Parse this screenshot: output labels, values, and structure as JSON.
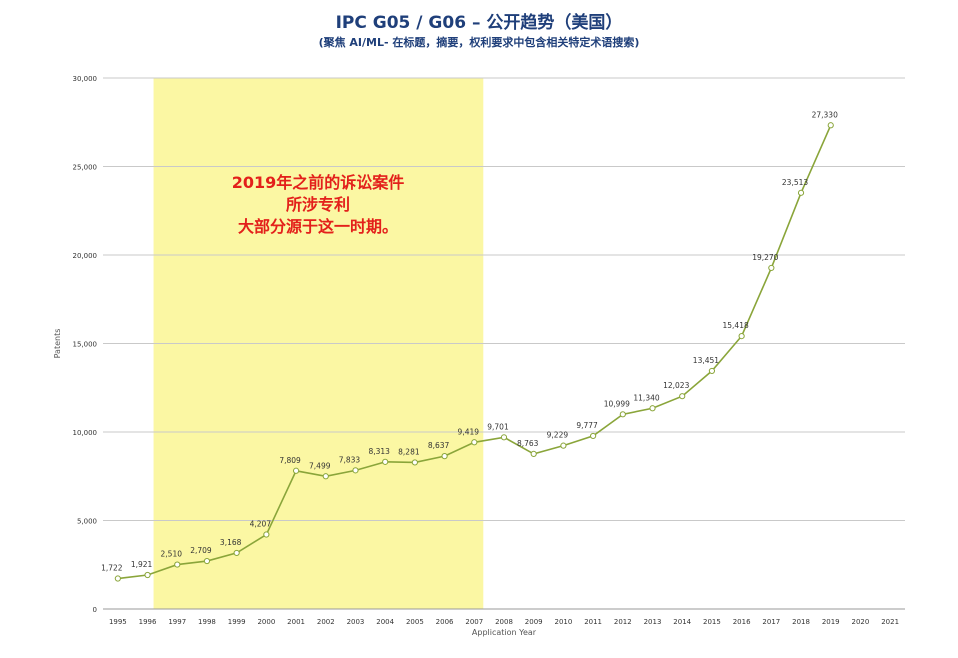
{
  "chart_data": {
    "type": "line",
    "title": "IPC G05 / G06 – 公开趋势（美国）",
    "subtitle": "(聚焦 AI/ML- 在标题，摘要，权利要求中包含相关特定术语搜索)",
    "xlabel": "Application Year",
    "ylabel": "Patents",
    "ylim": [
      0,
      30000
    ],
    "y_ticks": [
      "0",
      "5,000",
      "10,000",
      "15,000",
      "20,000",
      "25,000",
      "30,000"
    ],
    "y_tick_values": [
      0,
      5000,
      10000,
      15000,
      20000,
      25000,
      30000
    ],
    "categories": [
      "1995",
      "1996",
      "1997",
      "1998",
      "1999",
      "2000",
      "2001",
      "2002",
      "2003",
      "2004",
      "2005",
      "2006",
      "2007",
      "2008",
      "2009",
      "2010",
      "2011",
      "2012",
      "2013",
      "2014",
      "2015",
      "2016",
      "2017",
      "2018",
      "2019",
      "2020",
      "2021"
    ],
    "series": [
      {
        "values": [
          1722,
          1921,
          2510,
          2709,
          3168,
          4207,
          7809,
          7499,
          7833,
          8313,
          8281,
          8637,
          9419,
          9701,
          8763,
          9229,
          9777,
          10999,
          11340,
          12023,
          13451,
          15418,
          19270,
          23513,
          27330,
          null,
          null
        ],
        "labels": [
          "1,722",
          "1,921",
          "2,510",
          "2,709",
          "3,168",
          "4,207",
          "7,809",
          "7,499",
          "7,833",
          "8,313",
          "8,281",
          "8,637",
          "9,419",
          "9,701",
          "8,763",
          "9,229",
          "9,777",
          "10,999",
          "11,340",
          "12,023",
          "13,451",
          "15,418",
          "19,270",
          "23,513",
          "27,330",
          "",
          ""
        ],
        "color": "#8aa53a"
      }
    ],
    "highlight": {
      "from": "1996",
      "to": "2007",
      "color": "#fbf7a3"
    },
    "annotation": [
      "2019年之前的诉讼案件",
      "所涉专利",
      "大部分源于这一时期。"
    ],
    "annotation_color": "#e3201b",
    "grid": true,
    "legend": "none"
  }
}
